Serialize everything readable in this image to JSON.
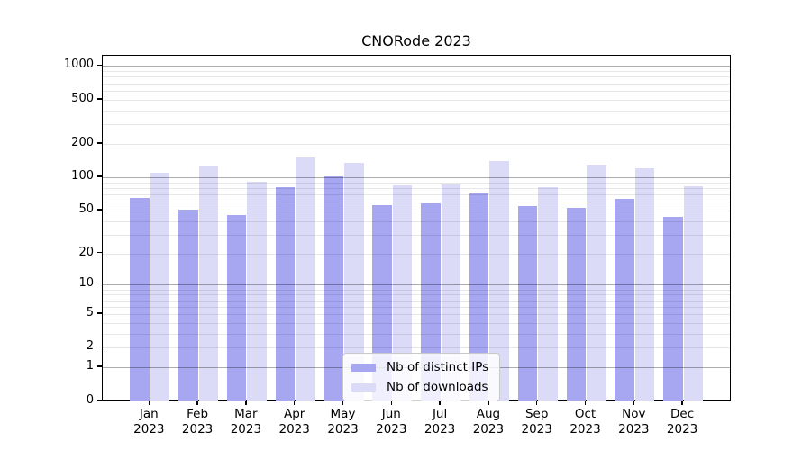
{
  "title": "CNORode 2023",
  "colors": {
    "background": "#ffffff",
    "spine": "#000000",
    "grid_minor": "#e7e7e7",
    "grid_major": "#b0b0b0",
    "distinct_ips": "#a6a6f1",
    "downloads": "#dbdbf8"
  },
  "legend": {
    "items": [
      {
        "label": "Nb of distinct IPs",
        "color": "#a6a6f1"
      },
      {
        "label": "Nb of downloads",
        "color": "#dbdbf8"
      }
    ]
  },
  "chart_data": {
    "type": "bar",
    "title": "CNORode 2023",
    "categories": [
      "Jan",
      "Feb",
      "Mar",
      "Apr",
      "May",
      "Jun",
      "Jul",
      "Aug",
      "Sep",
      "Oct",
      "Nov",
      "Dec"
    ],
    "x_sub_label": "2023",
    "series": [
      {
        "name": "Nb of distinct IPs",
        "color": "#a6a6f1",
        "values": [
          65,
          51,
          45,
          81,
          102,
          56,
          58,
          71,
          55,
          53,
          64,
          44
        ]
      },
      {
        "name": "Nb of downloads",
        "color": "#dbdbf8",
        "values": [
          110,
          127,
          91,
          150,
          135,
          85,
          86,
          140,
          82,
          131,
          121,
          83
        ]
      }
    ],
    "y_scale": "log1p",
    "y_ticks": [
      0,
      1,
      2,
      5,
      10,
      20,
      50,
      100,
      200,
      500,
      1000
    ],
    "grid_major_at": [
      1,
      10,
      100,
      1000
    ],
    "ylim": [
      0,
      1276
    ],
    "xlabel": "",
    "ylabel": "",
    "grid": true,
    "legend_position": "lower center"
  }
}
